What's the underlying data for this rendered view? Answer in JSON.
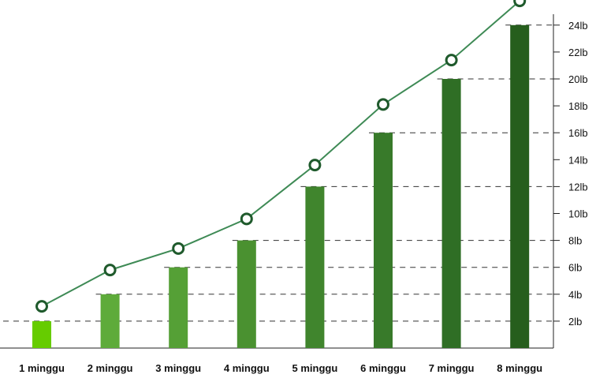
{
  "chart_data": {
    "type": "bar",
    "categories": [
      "1 minggu",
      "2 minggu",
      "3 minggu",
      "4 minggu",
      "5 minggu",
      "6 minggu",
      "7 minggu",
      "8 minggu"
    ],
    "series": [
      {
        "kind": "bar",
        "values": [
          2,
          4,
          6,
          8,
          12,
          16,
          20,
          24
        ],
        "colors": [
          "#66cc00",
          "#5eab3a",
          "#55a036",
          "#4a9130",
          "#40852d",
          "#387a2a",
          "#2f6e25",
          "#265e1d"
        ]
      },
      {
        "kind": "line",
        "values": [
          3.1,
          5.8,
          7.4,
          9.6,
          13.6,
          18.1,
          21.4,
          25.8
        ],
        "color": "#3e8a55"
      }
    ],
    "y_axis": {
      "position": "right",
      "ticks": [
        2,
        4,
        6,
        8,
        10,
        12,
        14,
        16,
        18,
        20,
        22,
        24
      ],
      "tick_labels": [
        "2lb",
        "4lb",
        "6lb",
        "8lb",
        "10lb",
        "12lb",
        "14lb",
        "16lb",
        "18lb",
        "20lb",
        "22lb",
        "24lb"
      ],
      "range": [
        0,
        26.5
      ]
    },
    "title": "",
    "xlabel": "",
    "ylabel": "",
    "grid": "dashed guide lines at each bar top",
    "legend": "none"
  }
}
